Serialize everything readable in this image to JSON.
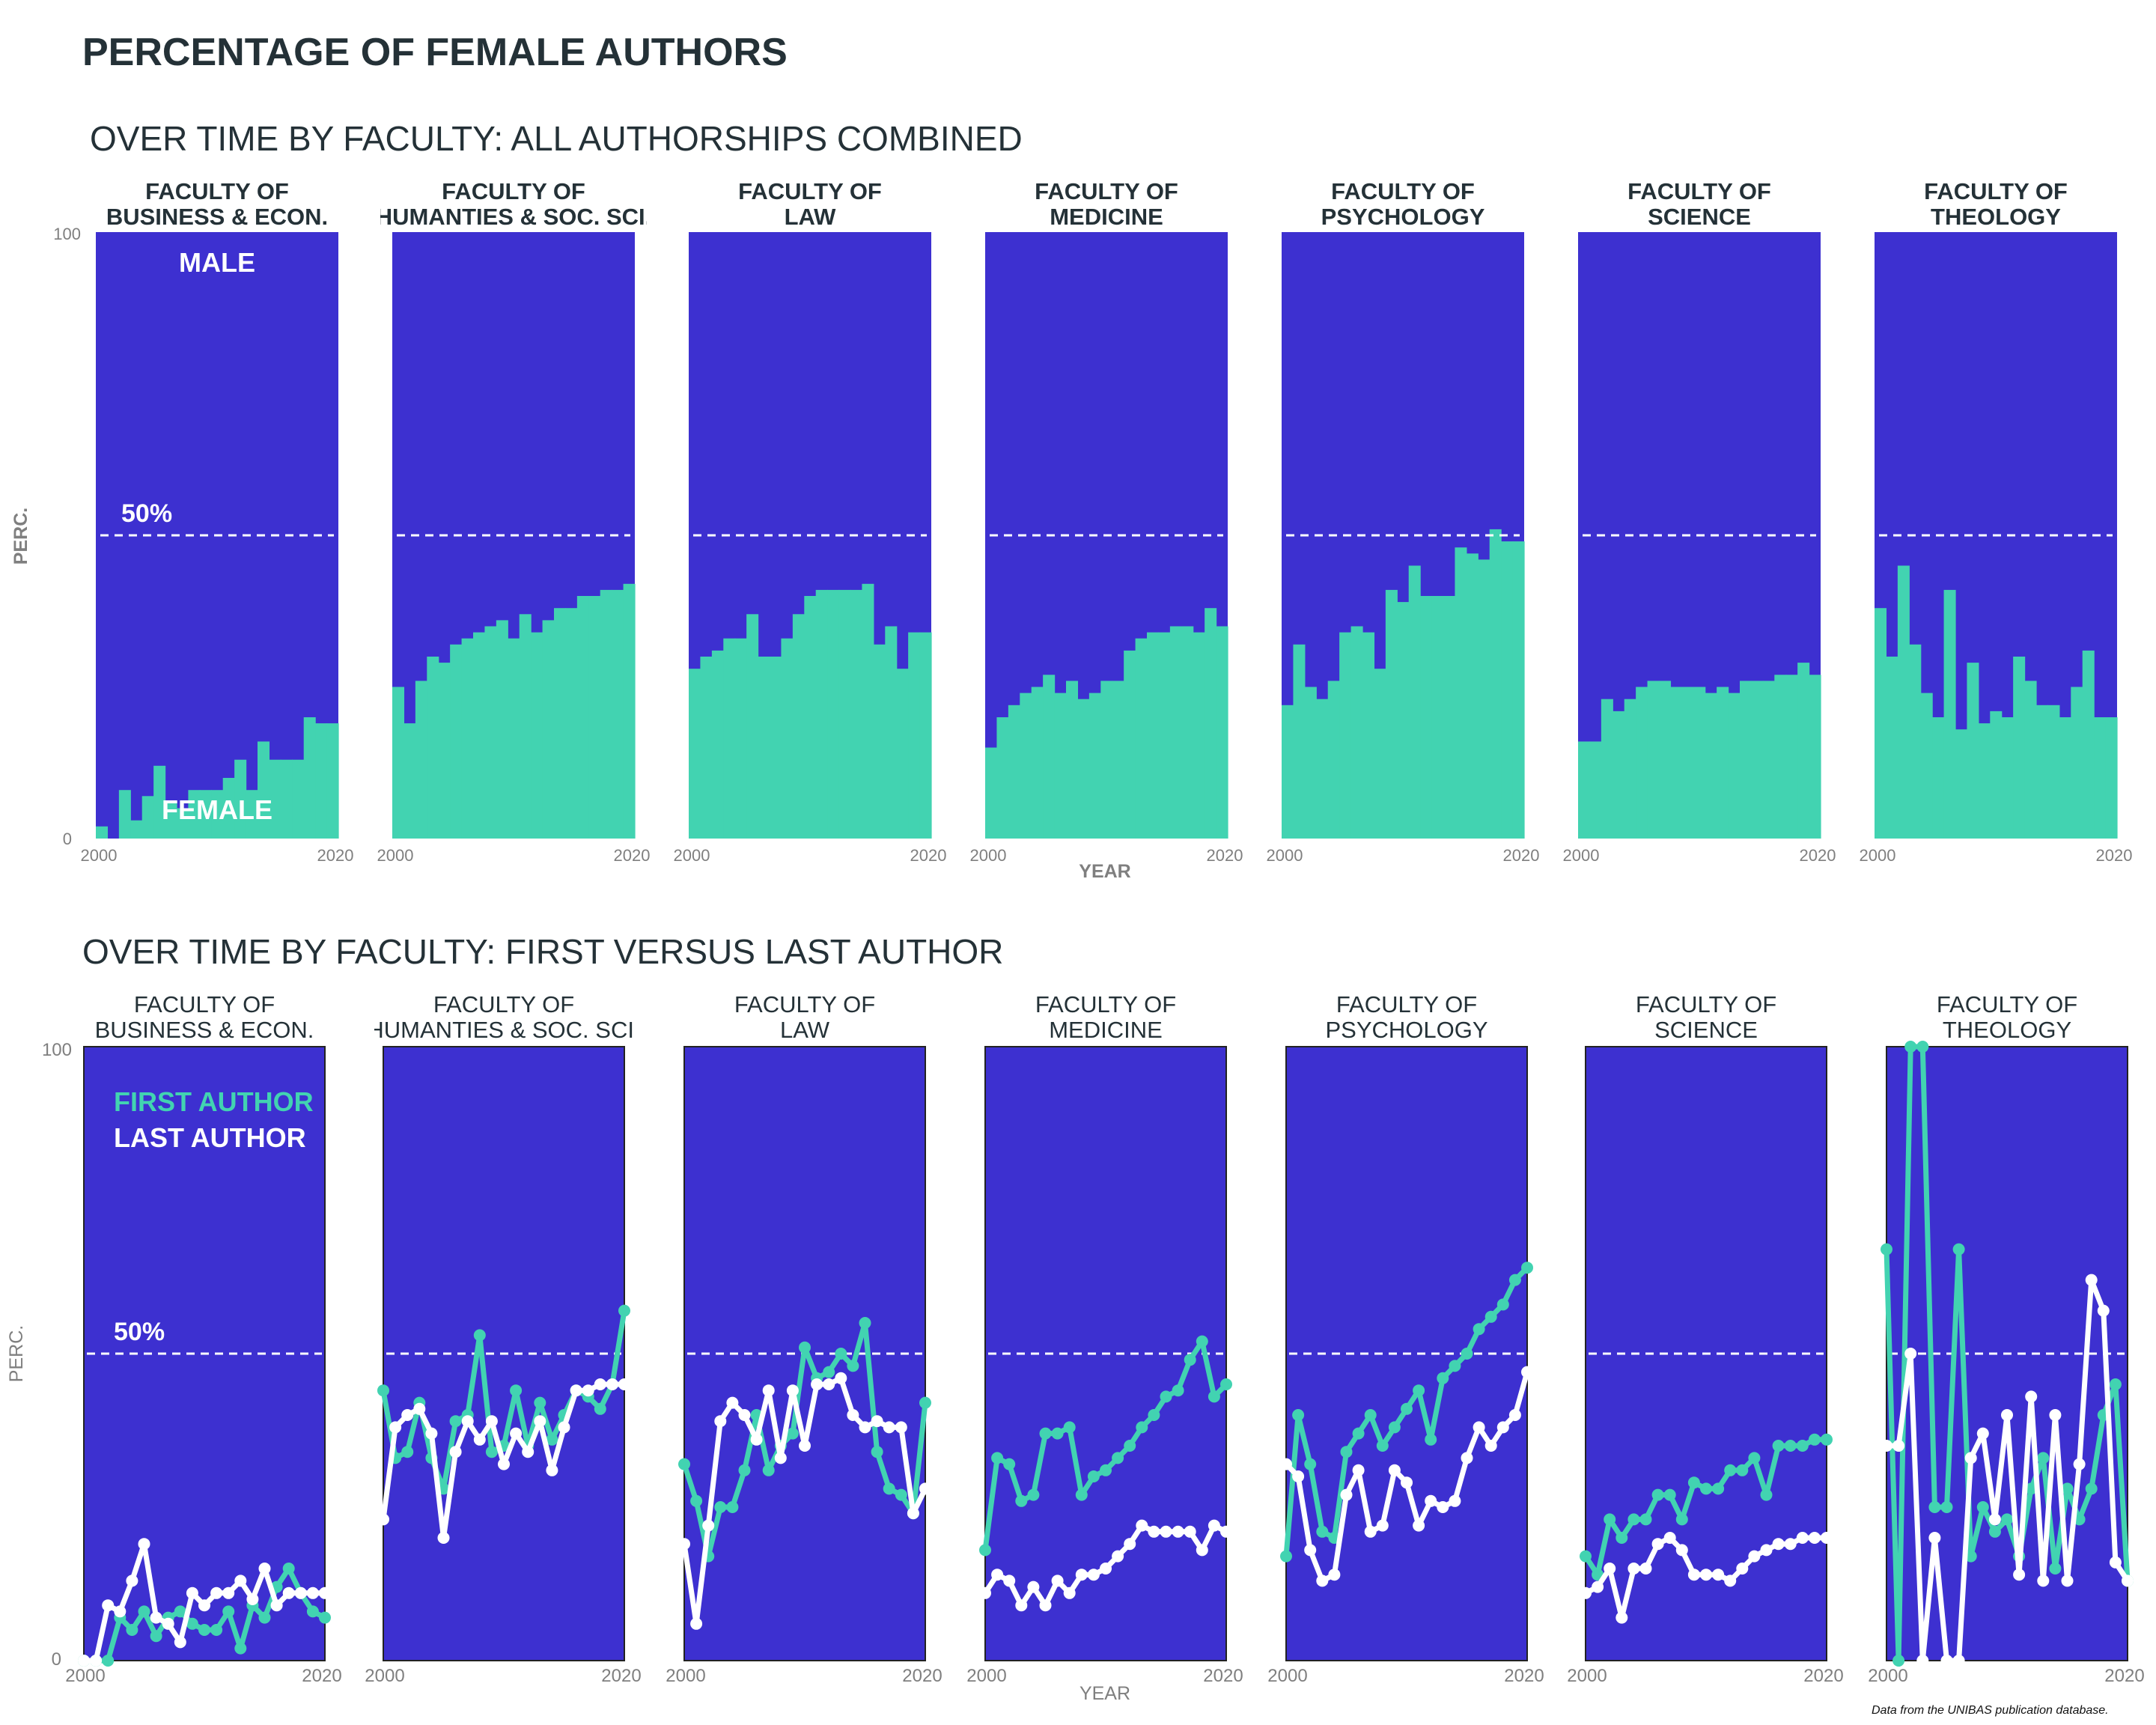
{
  "title": "PERCENTAGE OF FEMALE AUTHORS",
  "source": "Data from the UNIBAS publication database.",
  "colors": {
    "male": "#3d30d0",
    "female": "#42d3b1",
    "first_author": "#42d3b1",
    "last_author": "#ffffff",
    "text": "#243137",
    "axis_text": "#7f7f7f"
  },
  "chart_data": [
    {
      "type": "bar",
      "title": "OVER TIME BY FACULTY: ALL AUTHORSHIPS COMBINED",
      "xlabel": "YEAR",
      "ylabel": "PERC.",
      "yticks": [
        "0",
        "100"
      ],
      "xticks": [
        "2000",
        "2020"
      ],
      "ylim": [
        0,
        100
      ],
      "x": [
        2000,
        2001,
        2002,
        2003,
        2004,
        2005,
        2006,
        2007,
        2008,
        2009,
        2010,
        2011,
        2012,
        2013,
        2014,
        2015,
        2016,
        2017,
        2018,
        2019,
        2020
      ],
      "reference_line": {
        "value": 50,
        "label": "50%"
      },
      "annotations": {
        "male": "MALE",
        "female": "FEMALE"
      },
      "series": [
        {
          "facet": "FACULTY OF\nBUSINESS & ECON.",
          "values": [
            2,
            0,
            8,
            3,
            7,
            12,
            6,
            5,
            8,
            8,
            8,
            10,
            13,
            8,
            16,
            13,
            13,
            13,
            20,
            19,
            19
          ]
        },
        {
          "facet": "FACULTY OF\nHUMANTIES & SOC. SCI.",
          "values": [
            25,
            19,
            26,
            30,
            29,
            32,
            33,
            34,
            35,
            36,
            33,
            37,
            34,
            36,
            38,
            38,
            40,
            40,
            41,
            41,
            42
          ]
        },
        {
          "facet": "FACULTY OF\nLAW",
          "values": [
            28,
            30,
            31,
            33,
            33,
            37,
            30,
            30,
            33,
            37,
            40,
            41,
            41,
            41,
            41,
            42,
            32,
            35,
            28,
            34,
            34
          ]
        },
        {
          "facet": "FACULTY OF\nMEDICINE",
          "values": [
            15,
            20,
            22,
            24,
            25,
            27,
            24,
            26,
            23,
            24,
            26,
            26,
            31,
            33,
            34,
            34,
            35,
            35,
            34,
            38,
            35
          ]
        },
        {
          "facet": "FACULTY OF\nPSYCHOLOGY",
          "values": [
            22,
            32,
            25,
            23,
            26,
            34,
            35,
            34,
            28,
            41,
            39,
            45,
            40,
            40,
            40,
            48,
            47,
            46,
            51,
            49,
            49
          ]
        },
        {
          "facet": "FACULTY OF\nSCIENCE",
          "values": [
            16,
            16,
            23,
            21,
            23,
            25,
            26,
            26,
            25,
            25,
            25,
            24,
            25,
            24,
            26,
            26,
            26,
            27,
            27,
            29,
            27
          ]
        },
        {
          "facet": "FACULTY OF\nTHEOLOGY",
          "values": [
            38,
            30,
            45,
            32,
            24,
            20,
            41,
            18,
            29,
            19,
            21,
            20,
            30,
            26,
            22,
            22,
            20,
            25,
            31,
            20,
            20
          ]
        }
      ]
    },
    {
      "type": "line",
      "title": "OVER TIME BY FACULTY: FIRST VERSUS LAST AUTHOR",
      "xlabel": "YEAR",
      "ylabel": "PERC.",
      "yticks": [
        "0",
        "100"
      ],
      "xticks": [
        "2000",
        "2020"
      ],
      "ylim": [
        0,
        100
      ],
      "x": [
        2000,
        2001,
        2002,
        2003,
        2004,
        2005,
        2006,
        2007,
        2008,
        2009,
        2010,
        2011,
        2012,
        2013,
        2014,
        2015,
        2016,
        2017,
        2018,
        2019,
        2020
      ],
      "reference_line": {
        "value": 50,
        "label": "50%"
      },
      "legend": {
        "first": "FIRST AUTHOR",
        "last": "LAST AUTHOR",
        "position": "top-left"
      },
      "facets": [
        {
          "facet": "FACULTY OF\nBUSINESS & ECON.",
          "first": [
            0,
            0,
            0,
            7,
            5,
            8,
            4,
            7,
            8,
            6,
            5,
            5,
            8,
            2,
            9,
            7,
            12,
            15,
            11,
            8,
            7
          ],
          "last": [
            0,
            0,
            9,
            8,
            13,
            19,
            7,
            6,
            3,
            11,
            9,
            11,
            11,
            13,
            10,
            15,
            9,
            11,
            11,
            11,
            11
          ]
        },
        {
          "facet": "FACULTY OF\nHUMANTIES & SOC. SCI.",
          "first": [
            44,
            33,
            34,
            42,
            33,
            28,
            39,
            40,
            53,
            34,
            35,
            44,
            35,
            42,
            36,
            40,
            44,
            43,
            41,
            45,
            57
          ],
          "last": [
            23,
            38,
            40,
            41,
            37,
            20,
            34,
            39,
            36,
            39,
            32,
            37,
            34,
            39,
            31,
            38,
            44,
            44,
            45,
            45,
            45
          ]
        },
        {
          "facet": "FACULTY OF\nLAW",
          "first": [
            32,
            26,
            17,
            25,
            25,
            31,
            40,
            31,
            35,
            37,
            51,
            46,
            47,
            50,
            48,
            55,
            34,
            28,
            27,
            24,
            42
          ],
          "last": [
            19,
            6,
            22,
            39,
            42,
            40,
            36,
            44,
            33,
            44,
            35,
            45,
            45,
            46,
            40,
            38,
            39,
            38,
            38,
            24,
            28
          ]
        },
        {
          "facet": "FACULTY OF\nMEDICINE",
          "first": [
            18,
            33,
            32,
            26,
            27,
            37,
            37,
            38,
            27,
            30,
            31,
            33,
            35,
            38,
            40,
            43,
            44,
            49,
            52,
            43,
            45
          ],
          "last": [
            11,
            14,
            13,
            9,
            12,
            9,
            13,
            11,
            14,
            14,
            15,
            17,
            19,
            22,
            21,
            21,
            21,
            21,
            18,
            22,
            21
          ]
        },
        {
          "facet": "FACULTY OF\nPSYCHOLOGY",
          "first": [
            17,
            40,
            32,
            21,
            20,
            34,
            37,
            40,
            35,
            38,
            41,
            44,
            36,
            46,
            48,
            50,
            54,
            56,
            58,
            62,
            64
          ],
          "last": [
            32,
            30,
            18,
            13,
            14,
            27,
            31,
            21,
            22,
            31,
            29,
            22,
            26,
            25,
            26,
            33,
            38,
            35,
            38,
            40,
            47
          ]
        },
        {
          "facet": "FACULTY OF\nSCIENCE",
          "first": [
            17,
            14,
            23,
            20,
            23,
            23,
            27,
            27,
            23,
            29,
            28,
            28,
            31,
            31,
            33,
            27,
            35,
            35,
            35,
            36,
            36
          ],
          "last": [
            11,
            12,
            15,
            7,
            15,
            15,
            19,
            20,
            18,
            14,
            14,
            14,
            13,
            15,
            17,
            18,
            19,
            19,
            20,
            20,
            20
          ]
        },
        {
          "facet": "FACULTY OF\nTHEOLOGY",
          "first": [
            67,
            0,
            100,
            100,
            25,
            25,
            67,
            17,
            25,
            21,
            23,
            17,
            28,
            33,
            15,
            28,
            23,
            28,
            40,
            45,
            13
          ],
          "last": [
            35,
            35,
            50,
            0,
            20,
            0,
            0,
            33,
            37,
            23,
            40,
            14,
            43,
            13,
            40,
            13,
            32,
            62,
            57,
            16,
            13
          ]
        }
      ]
    }
  ]
}
